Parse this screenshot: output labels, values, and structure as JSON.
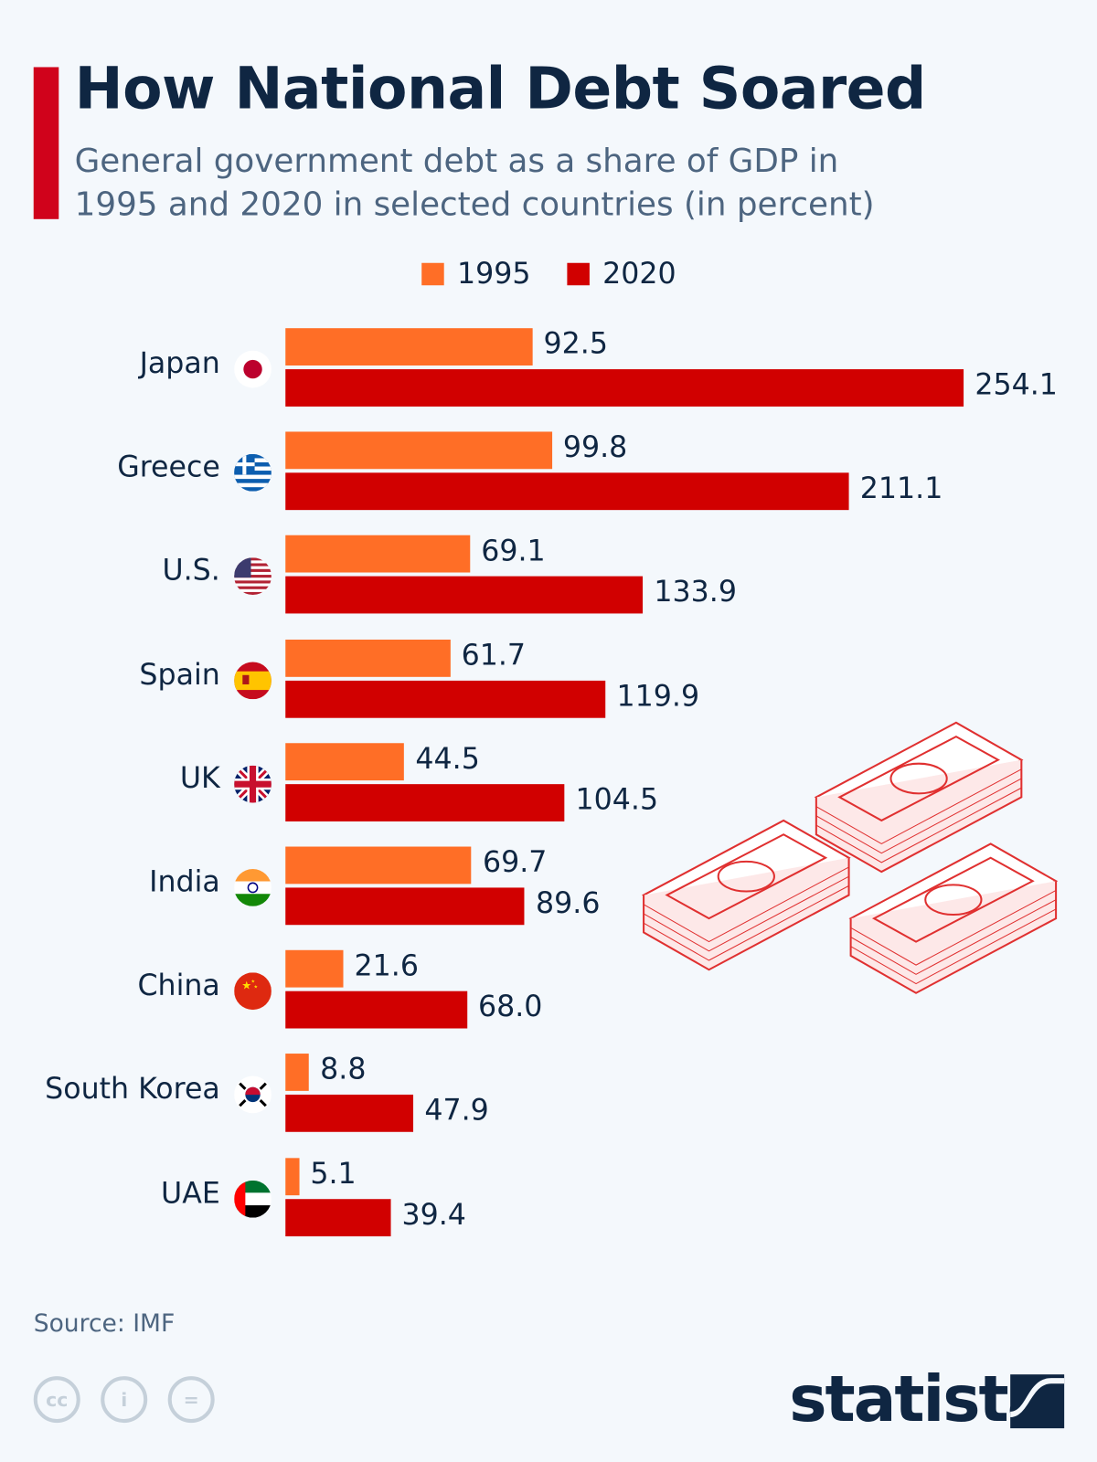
{
  "title": "How National Debt Soared",
  "subtitle": "General government debt as a share of GDP in 1995 and 2020 in selected countries (in percent)",
  "source": "Source: IMF",
  "brand": "statista",
  "colors": {
    "1995": "#ff6e26",
    "2020": "#d10000",
    "accent": "#d0021b",
    "text": "#0f2642"
  },
  "chart_data": {
    "type": "bar",
    "orientation": "horizontal",
    "title": "How National Debt Soared",
    "subtitle": "General government debt as a share of GDP in 1995 and 2020 in selected countries (in percent)",
    "xlabel": "",
    "ylabel": "",
    "xlim": [
      0,
      254.1
    ],
    "legend": "top-center",
    "categories": [
      "Japan",
      "Greece",
      "U.S.",
      "Spain",
      "UK",
      "India",
      "China",
      "South Korea",
      "UAE"
    ],
    "series": [
      {
        "name": "1995",
        "values": [
          92.5,
          99.8,
          69.1,
          61.7,
          44.5,
          69.7,
          21.6,
          8.8,
          5.1
        ],
        "labels": [
          "92.5",
          "99.8",
          "69.1",
          "61.7",
          "44.5",
          "69.7",
          "21.6",
          "8.8",
          "5.1"
        ]
      },
      {
        "name": "2020",
        "values": [
          254.1,
          211.1,
          133.9,
          119.9,
          104.5,
          89.6,
          68.0,
          47.9,
          39.4
        ],
        "labels": [
          "254.1",
          "211.1",
          "133.9",
          "119.9",
          "104.5",
          "89.6",
          "68.0",
          "47.9",
          "39.4"
        ]
      }
    ]
  }
}
